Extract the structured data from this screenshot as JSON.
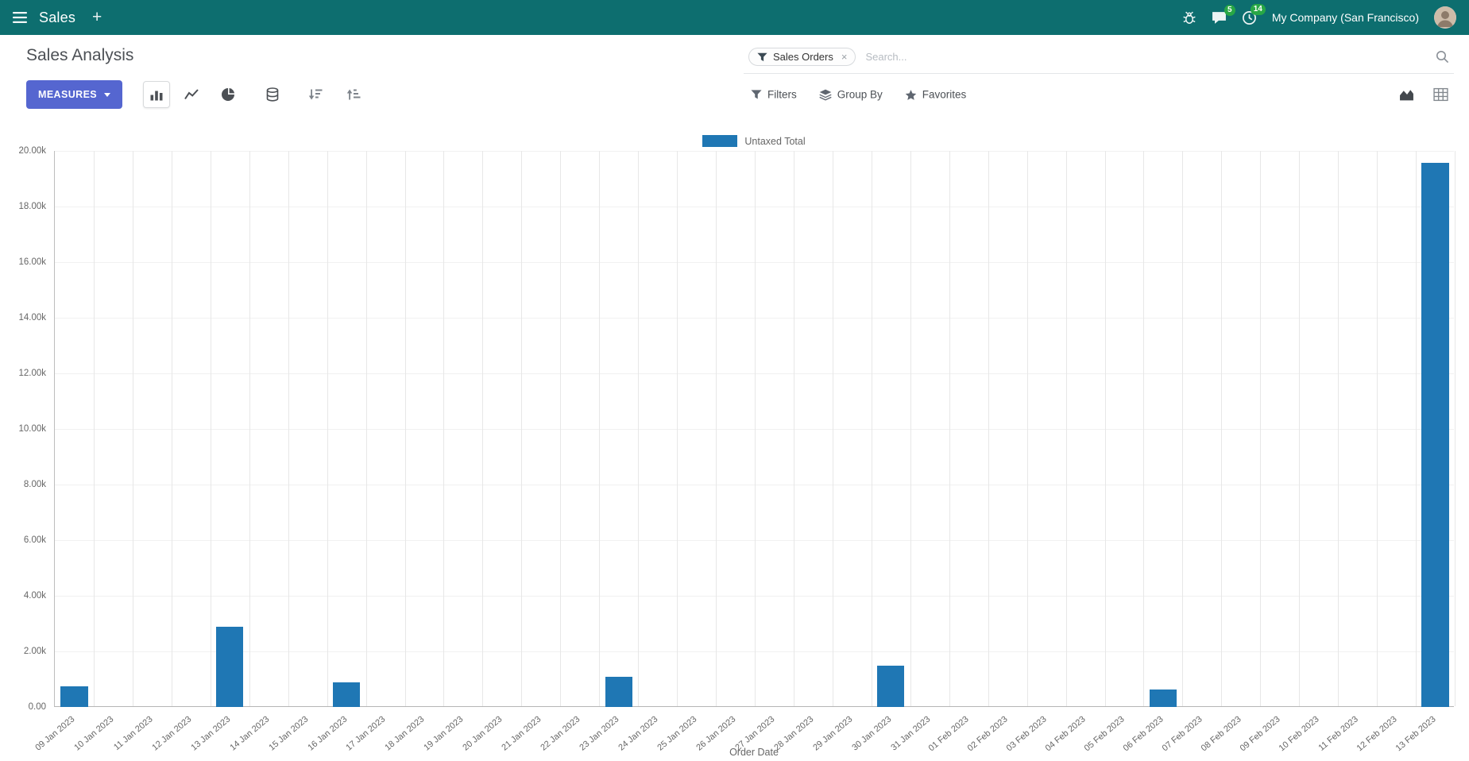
{
  "nav": {
    "app_name": "Sales",
    "plus_label": "+",
    "chat_badge": "5",
    "clock_badge": "14",
    "company": "My Company (San Francisco)"
  },
  "header": {
    "title": "Sales Analysis"
  },
  "search": {
    "facet_label": "Sales Orders",
    "facet_remove": "×",
    "placeholder": "Search..."
  },
  "toolbar": {
    "measures_label": "MEASURES",
    "filters_label": "Filters",
    "group_by_label": "Group By",
    "favorites_label": "Favorites"
  },
  "colors": {
    "navbar_bg": "#0d6e6f",
    "primary_button": "#5566d0",
    "badge_green": "#28a745",
    "bar_blue": "#1f77b4"
  },
  "chart_data": {
    "type": "bar",
    "categories": [
      "09 Jan 2023",
      "10 Jan 2023",
      "11 Jan 2023",
      "12 Jan 2023",
      "13 Jan 2023",
      "14 Jan 2023",
      "15 Jan 2023",
      "16 Jan 2023",
      "17 Jan 2023",
      "18 Jan 2023",
      "19 Jan 2023",
      "20 Jan 2023",
      "21 Jan 2023",
      "22 Jan 2023",
      "23 Jan 2023",
      "24 Jan 2023",
      "25 Jan 2023",
      "26 Jan 2023",
      "27 Jan 2023",
      "28 Jan 2023",
      "29 Jan 2023",
      "30 Jan 2023",
      "31 Jan 2023",
      "01 Feb 2023",
      "02 Feb 2023",
      "03 Feb 2023",
      "04 Feb 2023",
      "05 Feb 2023",
      "06 Feb 2023",
      "07 Feb 2023",
      "08 Feb 2023",
      "09 Feb 2023",
      "10 Feb 2023",
      "11 Feb 2023",
      "12 Feb 2023",
      "13 Feb 2023"
    ],
    "series": [
      {
        "name": "Untaxed Total",
        "color": "#1f77b4",
        "values": [
          750,
          0,
          0,
          0,
          2900,
          0,
          0,
          900,
          0,
          0,
          0,
          0,
          0,
          0,
          1080,
          0,
          0,
          0,
          0,
          0,
          0,
          1490,
          0,
          0,
          0,
          0,
          0,
          0,
          620,
          0,
          0,
          0,
          0,
          0,
          0,
          19560
        ]
      }
    ],
    "xlabel": "Order Date",
    "ylabel": "",
    "ylim": [
      0,
      20000
    ],
    "ytick_step": 2000,
    "ytick_labels": [
      "0.00",
      "2.00k",
      "4.00k",
      "6.00k",
      "8.00k",
      "10.00k",
      "12.00k",
      "14.00k",
      "16.00k",
      "18.00k",
      "20.00k"
    ],
    "grid": true,
    "legend_position": "top-center"
  }
}
